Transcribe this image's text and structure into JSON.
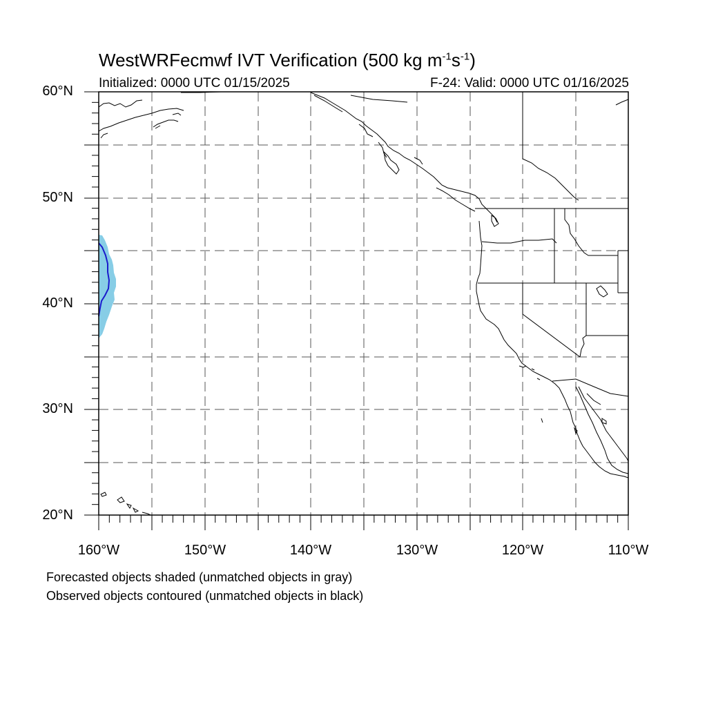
{
  "title": {
    "main": "WestWRFecmwf IVT Verification (500 kg m",
    "sup1": "-1",
    "mid": "s",
    "sup2": "-1",
    "end": ")"
  },
  "initialized": "Initialized: 0000 UTC 01/15/2025",
  "valid": "F-24: Valid: 0000 UTC 01/16/2025",
  "axes": {
    "lat_labels": [
      "60°N",
      "50°N",
      "40°N",
      "30°N",
      "20°N"
    ],
    "lon_labels": [
      "160°W",
      "150°W",
      "140°W",
      "130°W",
      "120°W",
      "110°W"
    ],
    "lat_range": [
      20,
      60
    ],
    "lon_range": [
      -160,
      -110
    ],
    "grid": "dashed, every 5 degrees"
  },
  "notes": [
    "Forecasted objects shaded (unmatched objects in gray)",
    "Observed objects contoured (unmatched objects in black)"
  ],
  "colors": {
    "forecast_object": "#87cde6",
    "observed_contour": "#1a1acc",
    "coastline": "#000000",
    "grid": "#555555"
  }
}
